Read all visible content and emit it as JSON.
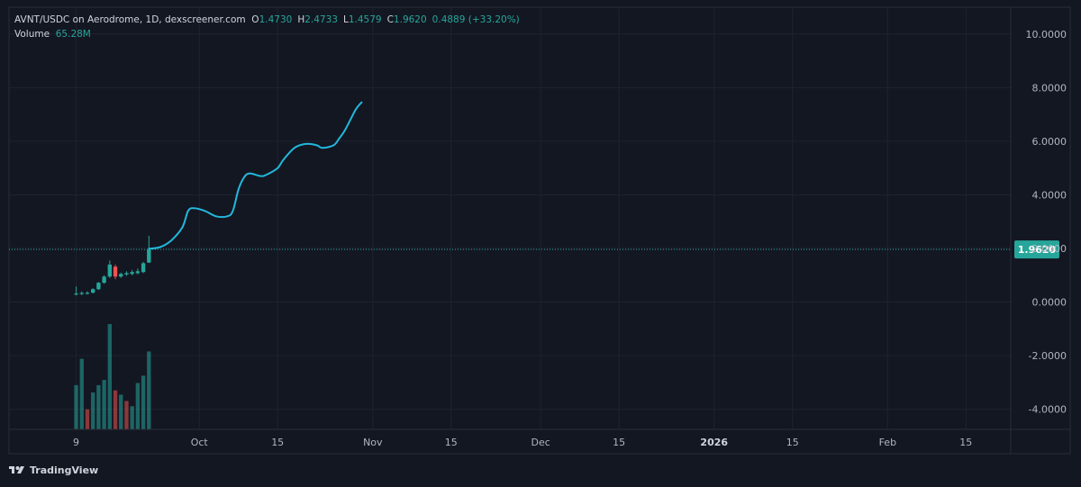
{
  "header": {
    "symbol_line": "AVNT/USDC on Aerodrome, 1D, dexscreener.com",
    "o_label": "O",
    "o_value": "1.4730",
    "h_label": "H",
    "h_value": "2.4733",
    "l_label": "L",
    "l_value": "1.4579",
    "c_label": "C",
    "c_value": "1.9620",
    "change": "0.4889 (+33.20%)",
    "volume_label": "Volume",
    "volume_value": "65.28M"
  },
  "footer": {
    "brand": "TradingView",
    "logo_icon": "tradingview-logo-icon"
  },
  "colors": {
    "background": "#131722",
    "up": "#26a69a",
    "down": "#ef5350",
    "line": "#22b8dc",
    "grid": "#1f2330",
    "text": "#b2b5be"
  },
  "chart_data": {
    "type": "candlestick",
    "interval": "1D",
    "y_axis": {
      "ticks": [
        "10.0000",
        "8.0000",
        "6.0000",
        "4.0000",
        "2.0000",
        "0.0000",
        "-2.0000",
        "-4.0000"
      ],
      "tick_values": [
        10,
        8,
        6,
        4,
        2,
        0,
        -2,
        -4
      ],
      "range": [
        -4.75,
        11.0
      ]
    },
    "x_axis": {
      "ticks": [
        "9",
        "Oct",
        "15",
        "Nov",
        "15",
        "Dec",
        "15",
        "2026",
        "15",
        "Feb",
        "15"
      ],
      "tick_dates": [
        "2025-09-09",
        "2025-10-01",
        "2025-10-15",
        "2025-11-01",
        "2025-11-15",
        "2025-12-01",
        "2025-12-15",
        "2026-01-01",
        "2026-01-15",
        "2026-02-01",
        "2026-02-15"
      ],
      "range": [
        "2025-08-28",
        "2026-02-23"
      ],
      "bold_tick": "2026"
    },
    "last_price": {
      "label": "1.9620",
      "value": 1.962
    },
    "candles": [
      {
        "date": "2025-09-09",
        "open": 0.3,
        "high": 0.58,
        "low": 0.25,
        "close": 0.32
      },
      {
        "date": "2025-09-10",
        "open": 0.3,
        "high": 0.4,
        "low": 0.26,
        "close": 0.34
      },
      {
        "date": "2025-09-11",
        "open": 0.33,
        "high": 0.4,
        "low": 0.28,
        "close": 0.35
      },
      {
        "date": "2025-09-12",
        "open": 0.35,
        "high": 0.52,
        "low": 0.32,
        "close": 0.48
      },
      {
        "date": "2025-09-13",
        "open": 0.48,
        "high": 0.75,
        "low": 0.45,
        "close": 0.72
      },
      {
        "date": "2025-09-14",
        "open": 0.72,
        "high": 1.0,
        "low": 0.68,
        "close": 0.95
      },
      {
        "date": "2025-09-15",
        "open": 0.95,
        "high": 1.55,
        "low": 0.9,
        "close": 1.4
      },
      {
        "date": "2025-09-16",
        "open": 1.32,
        "high": 1.4,
        "low": 0.85,
        "close": 0.95
      },
      {
        "date": "2025-09-17",
        "open": 0.95,
        "high": 1.1,
        "low": 0.9,
        "close": 1.05
      },
      {
        "date": "2025-09-18",
        "open": 1.03,
        "high": 1.15,
        "low": 0.98,
        "close": 1.08
      },
      {
        "date": "2025-09-19",
        "open": 1.05,
        "high": 1.2,
        "low": 1.0,
        "close": 1.12
      },
      {
        "date": "2025-09-20",
        "open": 1.08,
        "high": 1.25,
        "low": 1.03,
        "close": 1.15
      },
      {
        "date": "2025-09-21",
        "open": 1.12,
        "high": 1.5,
        "low": 1.08,
        "close": 1.45
      },
      {
        "date": "2025-09-22",
        "open": 1.473,
        "high": 2.4733,
        "low": 1.4579,
        "close": 1.962
      }
    ],
    "volume": [
      {
        "date": "2025-09-09",
        "value": 0.42,
        "dir": "up"
      },
      {
        "date": "2025-09-10",
        "value": 0.67,
        "dir": "up"
      },
      {
        "date": "2025-09-11",
        "value": 0.19,
        "dir": "down"
      },
      {
        "date": "2025-09-12",
        "value": 0.35,
        "dir": "up"
      },
      {
        "date": "2025-09-13",
        "value": 0.42,
        "dir": "up"
      },
      {
        "date": "2025-09-14",
        "value": 0.47,
        "dir": "up"
      },
      {
        "date": "2025-09-15",
        "value": 1.0,
        "dir": "up"
      },
      {
        "date": "2025-09-16",
        "value": 0.37,
        "dir": "down"
      },
      {
        "date": "2025-09-17",
        "value": 0.33,
        "dir": "up"
      },
      {
        "date": "2025-09-18",
        "value": 0.27,
        "dir": "down"
      },
      {
        "date": "2025-09-19",
        "value": 0.22,
        "dir": "up"
      },
      {
        "date": "2025-09-20",
        "value": 0.44,
        "dir": "up"
      },
      {
        "date": "2025-09-21",
        "value": 0.51,
        "dir": "up"
      },
      {
        "date": "2025-09-22",
        "value": 0.74,
        "dir": "up"
      }
    ],
    "projection_line": [
      {
        "date": "2025-09-22",
        "value": 1.99
      },
      {
        "date": "2025-09-24",
        "value": 2.05
      },
      {
        "date": "2025-09-26",
        "value": 2.3
      },
      {
        "date": "2025-09-28",
        "value": 2.8
      },
      {
        "date": "2025-09-29",
        "value": 3.4
      },
      {
        "date": "2025-09-30",
        "value": 3.5
      },
      {
        "date": "2025-10-02",
        "value": 3.4
      },
      {
        "date": "2025-10-04",
        "value": 3.2
      },
      {
        "date": "2025-10-06",
        "value": 3.2
      },
      {
        "date": "2025-10-07",
        "value": 3.4
      },
      {
        "date": "2025-10-08",
        "value": 4.2
      },
      {
        "date": "2025-10-09",
        "value": 4.65
      },
      {
        "date": "2025-10-10",
        "value": 4.8
      },
      {
        "date": "2025-10-12",
        "value": 4.7
      },
      {
        "date": "2025-10-13",
        "value": 4.75
      },
      {
        "date": "2025-10-15",
        "value": 5.0
      },
      {
        "date": "2025-10-16",
        "value": 5.3
      },
      {
        "date": "2025-10-18",
        "value": 5.75
      },
      {
        "date": "2025-10-20",
        "value": 5.9
      },
      {
        "date": "2025-10-22",
        "value": 5.85
      },
      {
        "date": "2025-10-23",
        "value": 5.75
      },
      {
        "date": "2025-10-25",
        "value": 5.85
      },
      {
        "date": "2025-10-26",
        "value": 6.1
      },
      {
        "date": "2025-10-27",
        "value": 6.4
      },
      {
        "date": "2025-10-28",
        "value": 6.8
      },
      {
        "date": "2025-10-29",
        "value": 7.2
      },
      {
        "date": "2025-10-30",
        "value": 7.45
      }
    ]
  }
}
